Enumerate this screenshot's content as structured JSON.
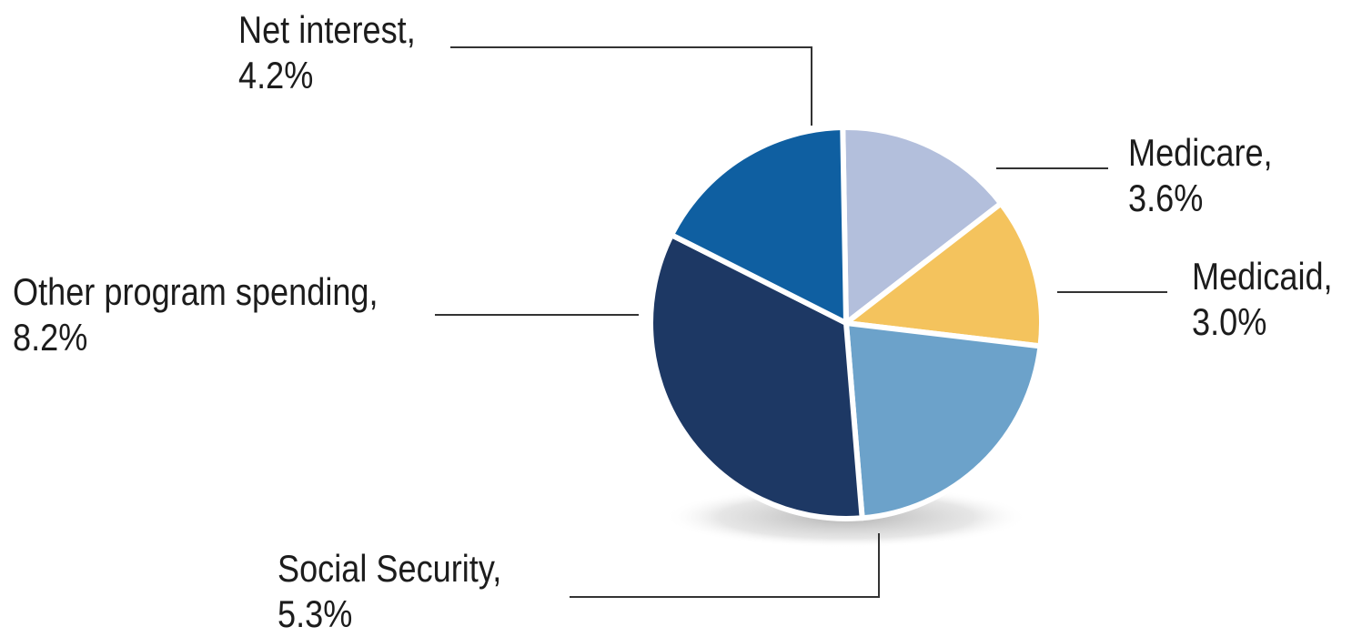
{
  "chart_data": {
    "type": "pie",
    "title": "",
    "slices": [
      {
        "label": "Medicare",
        "value": 3.6,
        "display": "3.6%",
        "color": "#b3bfdc"
      },
      {
        "label": "Medicaid",
        "value": 3.0,
        "display": "3.0%",
        "color": "#f4c35d"
      },
      {
        "label": "Social Security",
        "value": 5.3,
        "display": "5.3%",
        "color": "#6ca2ca"
      },
      {
        "label": "Other program spending",
        "value": 8.2,
        "display": "8.2%",
        "color": "#1d3864"
      },
      {
        "label": "Net interest",
        "value": 4.2,
        "display": "4.2%",
        "color": "#0f5fa1"
      }
    ],
    "legend": "none",
    "label_style": "leader-lines"
  },
  "labels": {
    "net_interest": {
      "name": "Net interest,",
      "value": "4.2%"
    },
    "medicare": {
      "name": "Medicare,",
      "value": "3.6%"
    },
    "medicaid": {
      "name": "Medicaid,",
      "value": "3.0%"
    },
    "other_program_spending": {
      "name": "Other program spending,",
      "value": "8.2%"
    },
    "social_security": {
      "name": "Social Security,",
      "value": "5.3%"
    }
  }
}
